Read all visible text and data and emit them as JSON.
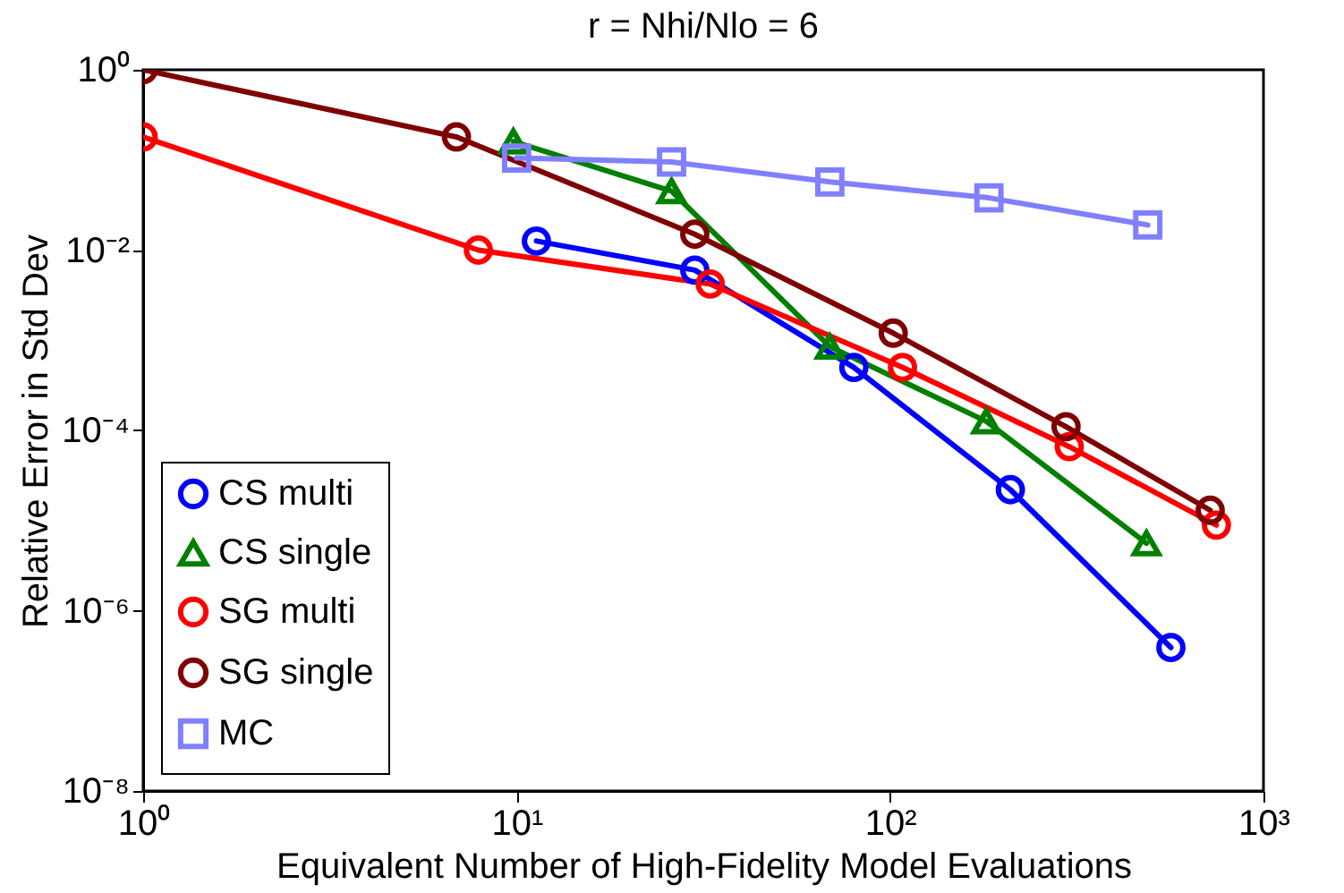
{
  "chart_data": {
    "type": "line",
    "title": "r = Nhi/Nlo = 6",
    "xlabel": "Equivalent Number of High-Fidelity Model Evaluations",
    "ylabel": "Relative Error in Std Dev",
    "log": "xy",
    "xlim": [
      1,
      1000
    ],
    "ylim": [
      1e-08,
      1
    ],
    "xticks": [
      {
        "value": 1,
        "label": "10⁰"
      },
      {
        "value": 10,
        "label": "10¹"
      },
      {
        "value": 100,
        "label": "10²"
      },
      {
        "value": 1000,
        "label": "10³"
      }
    ],
    "yticks": [
      {
        "value": 1e-08,
        "label": "10⁻⁸"
      },
      {
        "value": 1e-06,
        "label": "10⁻⁶"
      },
      {
        "value": 0.0001,
        "label": "10⁻⁴"
      },
      {
        "value": 0.01,
        "label": "10⁻²"
      },
      {
        "value": 1,
        "label": "10⁰"
      }
    ],
    "grid": false,
    "legend": "bottom left",
    "line_style": "solid",
    "series": [
      {
        "name": "CS multi",
        "color": "#0000ff",
        "marker": "circle",
        "x": [
          11.3,
          30,
          80,
          210,
          565
        ],
        "values": [
          0.0126,
          0.006,
          0.0005,
          2.2e-05,
          3.9e-07
        ]
      },
      {
        "name": "CS single",
        "color": "#007f00",
        "marker": "triangle",
        "x": [
          9.8,
          26,
          69,
          181,
          486
        ],
        "values": [
          0.16,
          0.045,
          0.00085,
          0.000126,
          5.6e-06
        ]
      },
      {
        "name": "SG multi",
        "color": "#ff0000",
        "marker": "circle",
        "x": [
          1,
          7.9,
          33,
          108,
          302,
          748
        ],
        "values": [
          0.18,
          0.01,
          0.0042,
          0.0005,
          6.6e-05,
          8.9e-06
        ]
      },
      {
        "name": "SG single",
        "color": "#7f0000",
        "marker": "circle",
        "x": [
          1,
          6.9,
          30,
          102,
          296,
          720
        ],
        "values": [
          1,
          0.18,
          0.015,
          0.0012,
          0.00011,
          1.3e-05
        ]
      },
      {
        "name": "MC",
        "color": "#8080ff",
        "marker": "square",
        "x": [
          10,
          26,
          69,
          184,
          490
        ],
        "values": [
          0.105,
          0.095,
          0.057,
          0.038,
          0.019
        ]
      }
    ]
  }
}
